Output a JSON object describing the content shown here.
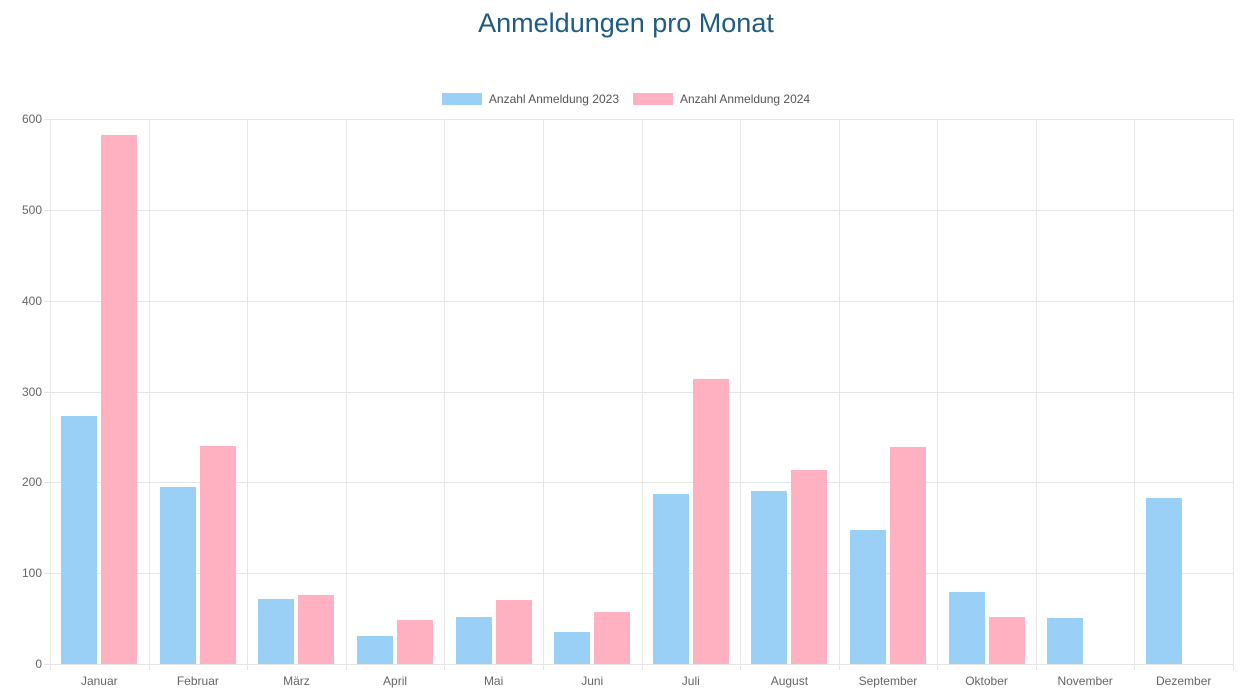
{
  "chart_data": {
    "type": "bar",
    "title": "Anmeldungen pro Monat",
    "categories": [
      "Januar",
      "Februar",
      "März",
      "April",
      "Mai",
      "Juni",
      "Juli",
      "August",
      "September",
      "Oktober",
      "November",
      "Dezember"
    ],
    "series": [
      {
        "name": "Anzahl Anmeldung 2023",
        "color": "#9AD0F5",
        "values": [
          273,
          195,
          72,
          31,
          52,
          35,
          187,
          190,
          147,
          79,
          51,
          183
        ]
      },
      {
        "name": "Anzahl Anmeldung 2024",
        "color": "#FFB1C1",
        "values": [
          582,
          240,
          76,
          49,
          71,
          57,
          314,
          214,
          239,
          52,
          null,
          null
        ]
      }
    ],
    "xlabel": "",
    "ylabel": "",
    "ylim": [
      0,
      600
    ],
    "yticks": [
      0,
      100,
      200,
      300,
      400,
      500,
      600
    ],
    "grid": true,
    "legend_position": "top"
  },
  "colors": {
    "title": "#1F5C7F",
    "axis_text": "#666666",
    "legend_text": "#555555",
    "gridline": "#E6E6E6",
    "background": "#FFFFFF"
  }
}
